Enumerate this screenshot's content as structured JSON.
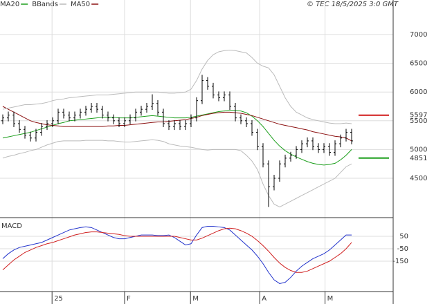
{
  "chart_data": {
    "type": "ohlc",
    "legend": [
      {
        "name": "MA20",
        "color": "#1a9e1a"
      },
      {
        "name": "BBands",
        "color": "#bbbbbb"
      },
      {
        "name": "MA50",
        "color": "#8b1010"
      }
    ],
    "copyright": "© TEC 18/5/2025 3:0 GMT",
    "ylim": [
      3815,
      7601
    ],
    "yticks": [
      4500,
      5000,
      5500,
      6000,
      6500,
      7000
    ],
    "xticks": [
      {
        "value": 8.9,
        "label": "25"
      },
      {
        "value": 22,
        "label": "F"
      },
      {
        "value": 33.9,
        "label": "M"
      },
      {
        "value": 46.4,
        "label": "A"
      },
      {
        "value": 58.2,
        "label": "M"
      }
    ],
    "color": "#000000",
    "open": [
      5500,
      5550,
      5600,
      5450,
      5350,
      5250,
      5200,
      5300,
      5400,
      5450,
      5500,
      5650,
      5600,
      5550,
      5600,
      5650,
      5700,
      5750,
      5700,
      5600,
      5550,
      5500,
      5450,
      5500,
      5550,
      5650,
      5700,
      5750,
      5800,
      5650,
      5450,
      5400,
      5450,
      5400,
      5450,
      5550,
      5850,
      6200,
      6100,
      5950,
      5900,
      5950,
      5750,
      5550,
      5500,
      5450,
      5300,
      5050,
      4750,
      4350,
      4500,
      4750,
      4850,
      4900,
      5000,
      5100,
      5150,
      5050,
      5000,
      5050,
      4950,
      5100,
      5200,
      5300
    ],
    "high": [
      5610,
      5660,
      5660,
      5510,
      5410,
      5310,
      5360,
      5460,
      5510,
      5560,
      5710,
      5710,
      5660,
      5660,
      5710,
      5760,
      5810,
      5810,
      5760,
      5660,
      5610,
      5560,
      5560,
      5610,
      5710,
      5760,
      5810,
      5960,
      5860,
      5710,
      5510,
      5510,
      5510,
      5510,
      5610,
      5910,
      6300,
      6260,
      6160,
      6010,
      6010,
      6010,
      5810,
      5610,
      5560,
      5510,
      5360,
      5110,
      4810,
      4560,
      4810,
      4910,
      4960,
      5060,
      5160,
      5210,
      5210,
      5110,
      5110,
      5110,
      5160,
      5260,
      5360,
      5360
    ],
    "low": [
      5440,
      5490,
      5390,
      5290,
      5190,
      5140,
      5140,
      5240,
      5340,
      5390,
      5440,
      5540,
      5490,
      5490,
      5540,
      5590,
      5640,
      5640,
      5540,
      5490,
      5440,
      5390,
      5390,
      5440,
      5490,
      5590,
      5640,
      5690,
      5590,
      5390,
      5340,
      5340,
      5340,
      5340,
      5390,
      5490,
      5790,
      6040,
      5890,
      5840,
      5840,
      5690,
      5490,
      5440,
      5390,
      5240,
      4990,
      4690,
      4000,
      4290,
      4440,
      4690,
      4790,
      4840,
      4940,
      5040,
      4990,
      4940,
      4940,
      4890,
      4890,
      5040,
      5140,
      5090
    ],
    "close": [
      5550,
      5600,
      5450,
      5350,
      5250,
      5200,
      5300,
      5400,
      5450,
      5500,
      5650,
      5600,
      5550,
      5600,
      5650,
      5700,
      5750,
      5700,
      5600,
      5550,
      5500,
      5450,
      5500,
      5550,
      5650,
      5700,
      5750,
      5800,
      5650,
      5450,
      5400,
      5450,
      5400,
      5450,
      5550,
      5850,
      6200,
      6100,
      5950,
      5900,
      5950,
      5750,
      5550,
      5500,
      5450,
      5300,
      5050,
      4750,
      4350,
      4500,
      4750,
      4850,
      4900,
      5000,
      5100,
      5150,
      5050,
      5000,
      5050,
      4950,
      5100,
      5200,
      5300,
      5150
    ],
    "series": [
      {
        "name": "MA20",
        "color": "#1a9e1a",
        "values": [
          5200,
          5220,
          5240,
          5260,
          5280,
          5300,
          5330,
          5360,
          5390,
          5420,
          5450,
          5470,
          5500,
          5510,
          5520,
          5530,
          5540,
          5550,
          5560,
          5560,
          5560,
          5550,
          5550,
          5550,
          5560,
          5570,
          5580,
          5590,
          5580,
          5570,
          5560,
          5550,
          5550,
          5550,
          5560,
          5580,
          5600,
          5620,
          5640,
          5660,
          5670,
          5680,
          5680,
          5670,
          5640,
          5580,
          5500,
          5400,
          5280,
          5160,
          5060,
          4980,
          4920,
          4870,
          4830,
          4790,
          4760,
          4740,
          4730,
          4740,
          4760,
          4820,
          4900,
          5000
        ]
      },
      {
        "name": "MA50",
        "color": "#8b1010",
        "values": [
          5750,
          5700,
          5650,
          5600,
          5550,
          5500,
          5470,
          5450,
          5430,
          5420,
          5410,
          5400,
          5400,
          5400,
          5400,
          5400,
          5400,
          5400,
          5400,
          5410,
          5410,
          5420,
          5420,
          5430,
          5440,
          5450,
          5460,
          5470,
          5480,
          5480,
          5490,
          5500,
          5510,
          5520,
          5540,
          5560,
          5590,
          5610,
          5630,
          5640,
          5650,
          5650,
          5640,
          5630,
          5610,
          5590,
          5560,
          5530,
          5500,
          5470,
          5440,
          5420,
          5400,
          5380,
          5360,
          5340,
          5310,
          5290,
          5270,
          5250,
          5230,
          5220,
          5200,
          5150
        ]
      },
      {
        "name": "BBands",
        "color": "#bbbbbb",
        "values": [
          5700,
          5720,
          5740,
          5760,
          5780,
          5780,
          5790,
          5800,
          5820,
          5850,
          5870,
          5880,
          5900,
          5910,
          5920,
          5930,
          5940,
          5950,
          5950,
          5950,
          5960,
          5970,
          5980,
          5990,
          6000,
          6000,
          6000,
          6000,
          6000,
          5990,
          5980,
          5980,
          5990,
          6000,
          6050,
          6200,
          6400,
          6550,
          6650,
          6700,
          6720,
          6730,
          6720,
          6700,
          6680,
          6600,
          6500,
          6450,
          6420,
          6300,
          6100,
          5900,
          5750,
          5650,
          5600,
          5550,
          5520,
          5500,
          5480,
          5460,
          5450,
          5450,
          5460,
          5450
        ]
      },
      {
        "name": "BBands",
        "color": "#bbbbbb",
        "values": [
          4850,
          4880,
          4900,
          4930,
          4950,
          4980,
          5000,
          5040,
          5080,
          5110,
          5140,
          5150,
          5150,
          5150,
          5150,
          5160,
          5160,
          5160,
          5160,
          5150,
          5150,
          5140,
          5130,
          5130,
          5140,
          5150,
          5160,
          5170,
          5160,
          5140,
          5100,
          5080,
          5060,
          5050,
          5040,
          5020,
          5000,
          4990,
          5000,
          5000,
          5000,
          5000,
          5000,
          4980,
          4900,
          4800,
          4650,
          4400,
          4200,
          4050,
          4000,
          4050,
          4100,
          4150,
          4200,
          4250,
          4300,
          4350,
          4400,
          4450,
          4500,
          4600,
          4700,
          4750
        ]
      }
    ],
    "levels": [
      {
        "value": 5597,
        "color": "#d01818"
      },
      {
        "value": 4851,
        "color": "#1a9e1a"
      }
    ],
    "macd": {
      "title": "MACD",
      "ylim": [
        -394,
        194
      ],
      "yticks": [
        50,
        -50,
        -150
      ],
      "series": [
        {
          "color": "#2233cc",
          "values": [
            -130,
            -90,
            -60,
            -40,
            -30,
            -20,
            -10,
            0,
            20,
            40,
            60,
            80,
            100,
            110,
            120,
            125,
            120,
            100,
            80,
            60,
            40,
            30,
            30,
            40,
            50,
            60,
            60,
            60,
            55,
            55,
            60,
            40,
            10,
            -20,
            -10,
            60,
            120,
            130,
            130,
            125,
            120,
            100,
            60,
            20,
            -20,
            -60,
            -110,
            -170,
            -240,
            -300,
            -330,
            -320,
            -280,
            -230,
            -190,
            -160,
            -130,
            -110,
            -90,
            -60,
            -20,
            20,
            60,
            60
          ]
        },
        {
          "color": "#d02020",
          "values": [
            -220,
            -180,
            -140,
            -110,
            -80,
            -60,
            -40,
            -25,
            -10,
            0,
            15,
            30,
            45,
            60,
            70,
            80,
            85,
            85,
            80,
            75,
            70,
            65,
            55,
            50,
            50,
            50,
            50,
            50,
            50,
            50,
            50,
            50,
            40,
            30,
            20,
            20,
            35,
            55,
            75,
            95,
            110,
            115,
            110,
            95,
            75,
            50,
            15,
            -25,
            -70,
            -120,
            -165,
            -200,
            -225,
            -240,
            -240,
            -230,
            -210,
            -190,
            -170,
            -150,
            -120,
            -90,
            -50,
            0
          ]
        }
      ]
    }
  }
}
